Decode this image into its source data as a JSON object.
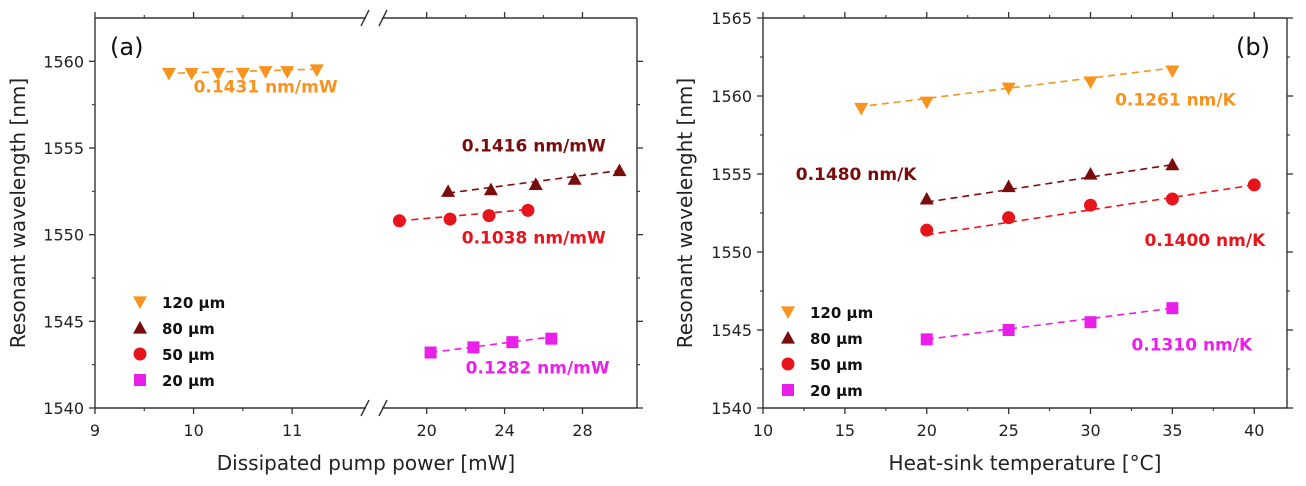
{
  "colors": {
    "120": "#f7931e",
    "80": "#7a0c0c",
    "50": "#e8141b",
    "20": "#ea1fea"
  },
  "chart_data": [
    {
      "type": "scatter",
      "panel_label": "(a)",
      "xlabel": "Dissipated pump power [mW]",
      "ylabel": "Resonant wavelength [nm]",
      "ylim": [
        1540,
        1562.5
      ],
      "yticks": [
        1540,
        1545,
        1550,
        1555,
        1560
      ],
      "x_broken_axis": true,
      "x_segments": [
        {
          "xlim": [
            9,
            11.8
          ],
          "ticks": [
            9,
            10,
            11
          ]
        },
        {
          "xlim": [
            17.5,
            30.8
          ],
          "ticks": [
            20,
            24,
            28
          ]
        }
      ],
      "legend": {
        "placement": "lower-left",
        "entries": [
          "120 µm",
          "80 µm",
          "50 µm",
          "20 µm"
        ]
      },
      "series": [
        {
          "name": "120 µm",
          "color_key": "120",
          "marker": "triangle-down",
          "segment": 0,
          "x": [
            9.75,
            9.98,
            10.25,
            10.5,
            10.73,
            10.95,
            11.25
          ],
          "y": [
            1559.3,
            1559.3,
            1559.3,
            1559.3,
            1559.4,
            1559.4,
            1559.5
          ],
          "fit": [
            [
              9.72,
              1559.3
            ],
            [
              11.25,
              1559.55
            ]
          ],
          "slope_label": "0.1431 nm/mW",
          "slope_anchor": [
            10.0,
            1558.2
          ]
        },
        {
          "name": "80 µm",
          "color_key": "80",
          "marker": "triangle-up",
          "segment": 1,
          "x": [
            21.1,
            23.3,
            25.6,
            27.6,
            29.9
          ],
          "y": [
            1552.5,
            1552.6,
            1552.9,
            1553.2,
            1553.7
          ],
          "fit": [
            [
              21.1,
              1552.4
            ],
            [
              29.9,
              1553.7
            ]
          ],
          "slope_label": "0.1416 nm/mW",
          "slope_anchor": [
            21.8,
            1554.8
          ]
        },
        {
          "name": "50 µm",
          "color_key": "50",
          "marker": "circle",
          "segment": 1,
          "x": [
            18.6,
            21.2,
            23.2,
            25.2
          ],
          "y": [
            1550.8,
            1550.9,
            1551.1,
            1551.4
          ],
          "fit": [
            [
              18.6,
              1550.8
            ],
            [
              25.2,
              1551.45
            ]
          ],
          "slope_label": "0.1038 nm/mW",
          "slope_anchor": [
            21.8,
            1549.5
          ]
        },
        {
          "name": "20 µm",
          "color_key": "20",
          "marker": "square",
          "segment": 1,
          "x": [
            20.2,
            22.4,
            24.4,
            26.4
          ],
          "y": [
            1543.2,
            1543.5,
            1543.8,
            1544.0
          ],
          "fit": [
            [
              20.2,
              1543.2
            ],
            [
              26.4,
              1544.1
            ]
          ],
          "slope_label": "0.1282 nm/mW",
          "slope_anchor": [
            22.0,
            1542.0
          ]
        }
      ]
    },
    {
      "type": "scatter",
      "panel_label": "(b)",
      "xlabel": "Heat-sink temperature [°C]",
      "ylabel": "Resonant wavelenght [nm]",
      "xlim": [
        10,
        42
      ],
      "ylim": [
        1540,
        1565
      ],
      "xticks": [
        10,
        15,
        20,
        25,
        30,
        35,
        40
      ],
      "yticks": [
        1540,
        1545,
        1550,
        1555,
        1560,
        1565
      ],
      "legend": {
        "placement": "lower-left",
        "entries": [
          "120 µm",
          "80 µm",
          "50 µm",
          "20 µm"
        ]
      },
      "series": [
        {
          "name": "120 µm",
          "color_key": "120",
          "marker": "triangle-down",
          "x": [
            16,
            20,
            25,
            30,
            35
          ],
          "y": [
            1559.2,
            1559.6,
            1560.5,
            1560.9,
            1561.6
          ],
          "fit": [
            [
              15.8,
              1559.3
            ],
            [
              35,
              1561.8
            ]
          ],
          "slope_label": "0.1261 nm/K",
          "slope_anchor": [
            31.5,
            1559.4
          ]
        },
        {
          "name": "80 µm",
          "color_key": "80",
          "marker": "triangle-up",
          "x": [
            20,
            25,
            30,
            35
          ],
          "y": [
            1553.4,
            1554.2,
            1555.0,
            1555.6
          ],
          "fit": [
            [
              20,
              1553.2
            ],
            [
              35,
              1555.6
            ]
          ],
          "slope_label": "0.1480 nm/K",
          "slope_anchor": [
            12.0,
            1554.6
          ]
        },
        {
          "name": "50 µm",
          "color_key": "50",
          "marker": "circle",
          "x": [
            20,
            25,
            30,
            35,
            40
          ],
          "y": [
            1551.4,
            1552.2,
            1553.0,
            1553.4,
            1554.3
          ],
          "fit": [
            [
              20,
              1551.1
            ],
            [
              40,
              1554.3
            ]
          ],
          "slope_label": "0.1400 nm/K",
          "slope_anchor": [
            33.3,
            1550.4
          ]
        },
        {
          "name": "20 µm",
          "color_key": "20",
          "marker": "square",
          "x": [
            20,
            25,
            30,
            35
          ],
          "y": [
            1544.4,
            1545.0,
            1545.5,
            1546.4
          ],
          "fit": [
            [
              20,
              1544.4
            ],
            [
              35,
              1546.4
            ]
          ],
          "slope_label": "0.1310 nm/K",
          "slope_anchor": [
            32.5,
            1543.7
          ]
        }
      ]
    }
  ]
}
